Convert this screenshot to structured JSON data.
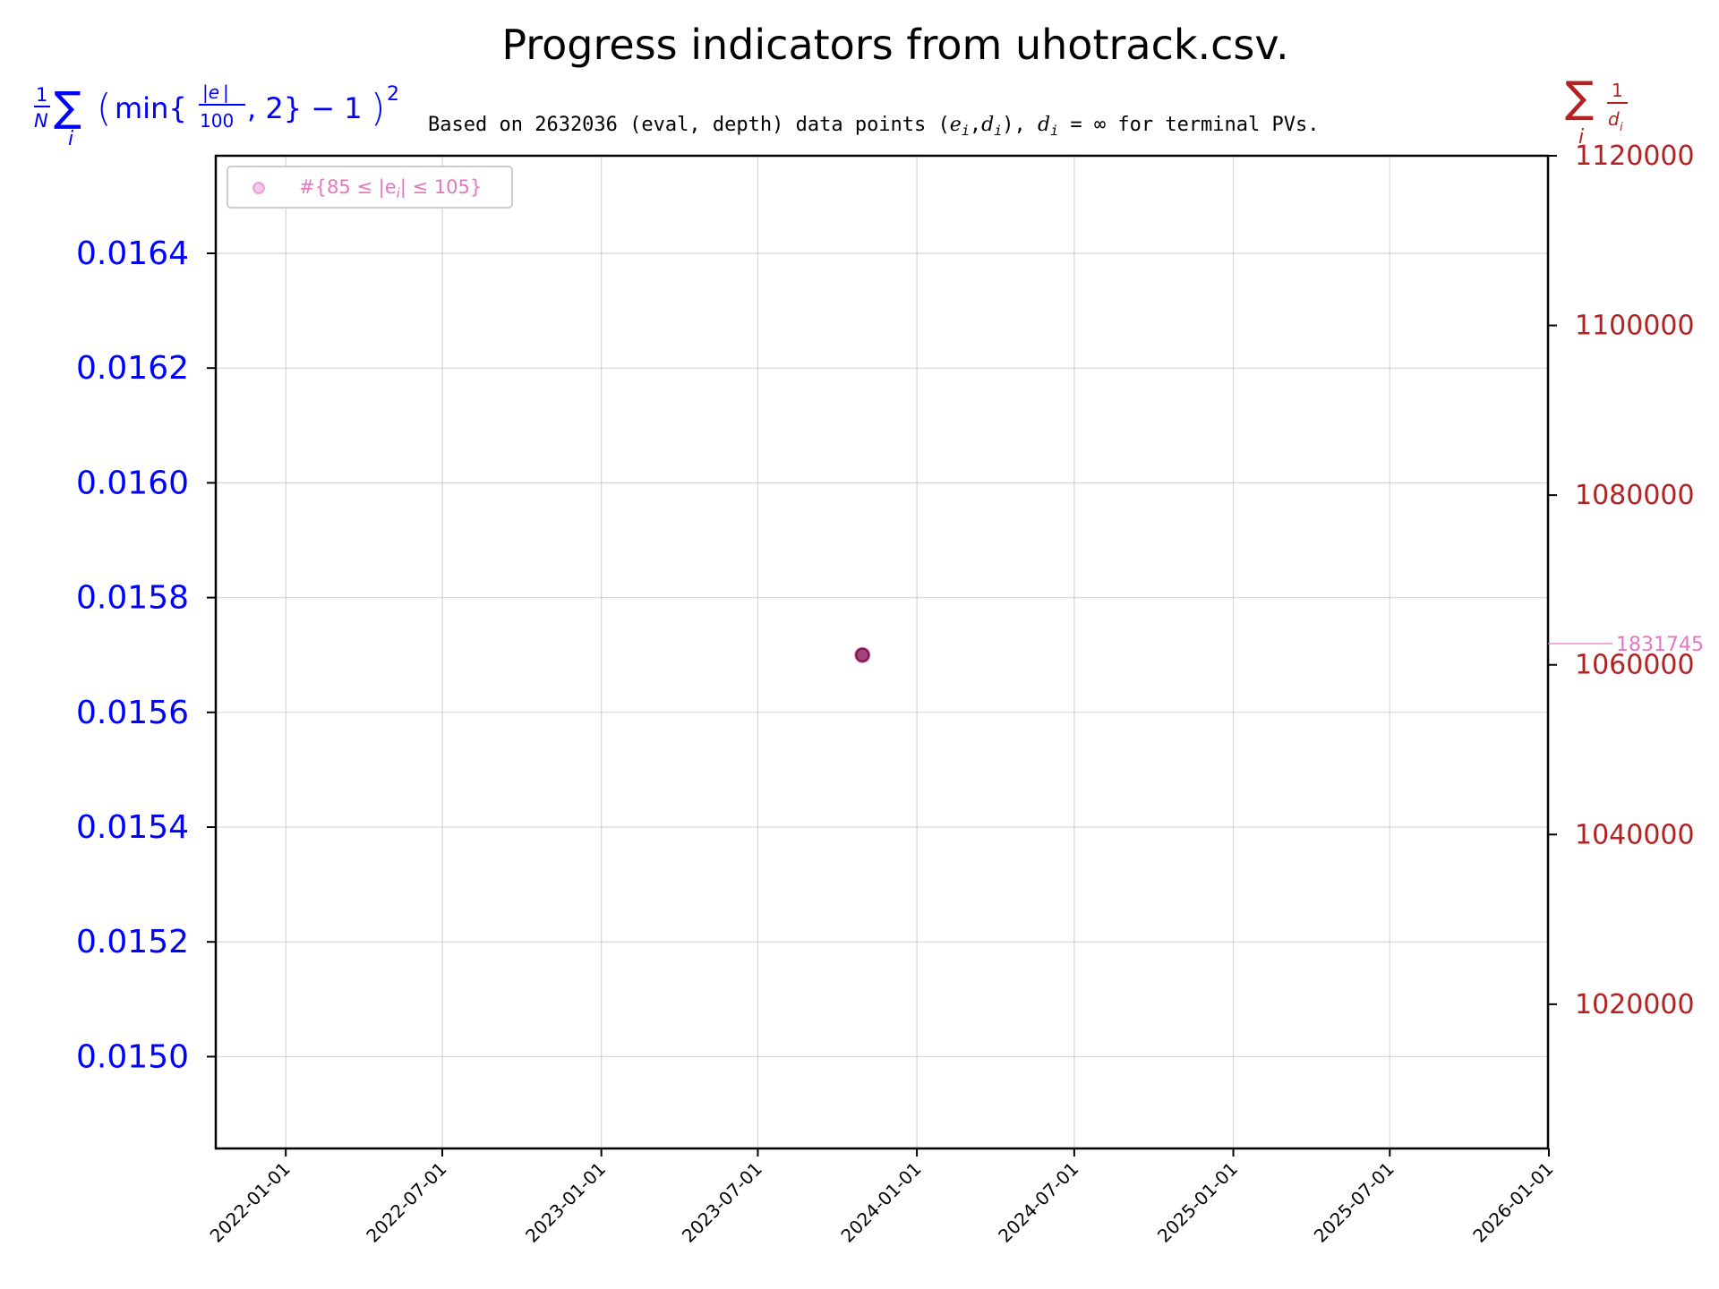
{
  "chart_data": {
    "type": "scatter",
    "title": "Progress indicators from uhotrack.csv.",
    "subtitle_parts": {
      "prefix": "Based on 2632036 (eval, depth) data points (",
      "e": "e",
      "i": "i",
      "comma": ",",
      "d": "d",
      "close_paren": ")",
      "after": ", ",
      "eq_inf": " = ∞",
      "suffix": " for terminal PVs."
    },
    "left_label_parts": {
      "one": "1",
      "N": "N",
      "sigma": "∑",
      "i": "i",
      "min_open": "min{",
      "abs_e": "|e",
      "abs_close": "|",
      "hundred": "100",
      "min_close": ", 2} − 1",
      "sq": "2"
    },
    "right_label_parts": {
      "sigma": "∑",
      "i": "i",
      "one": "1",
      "d": "d",
      "sub_i": "i"
    },
    "legend": {
      "position": "upper-left",
      "entry": "#{85 ≤ |e",
      "entry_sub": "i",
      "entry_end": "| ≤ 105}"
    },
    "x_ticks": [
      "2022-01-01",
      "2022-07-01",
      "2023-01-01",
      "2023-07-01",
      "2024-01-01",
      "2024-07-01",
      "2025-01-01",
      "2025-07-01",
      "2026-01-01"
    ],
    "xlim": [
      "2021-10-12",
      "2025-12-31"
    ],
    "y_left": {
      "ticks": [
        "0.0150",
        "0.0152",
        "0.0154",
        "0.0156",
        "0.0158",
        "0.0160",
        "0.0162",
        "0.0164"
      ],
      "ylim": [
        0.01484,
        0.01657
      ],
      "color": "#0000ff"
    },
    "y_right": {
      "ticks": [
        "1020000",
        "1040000",
        "1060000",
        "1080000",
        "1100000",
        "1120000"
      ],
      "ylim": [
        1003000,
        1120000
      ],
      "color": "#b22222"
    },
    "points": [
      {
        "date": "2023-10-30",
        "left": 0.0157,
        "right": 1062500,
        "label": "1831745"
      }
    ],
    "series_color": "#e377c2",
    "grid": true
  }
}
